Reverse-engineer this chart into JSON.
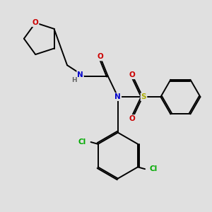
{
  "background_color": "#e0e0e0",
  "fig_size": [
    3.0,
    3.0
  ],
  "dpi": 100,
  "atom_colors": {
    "O": "#cc0000",
    "N": "#0000cc",
    "S": "#aaaa00",
    "Cl": "#00aa00",
    "H": "#666666",
    "C": "#000000"
  },
  "bond_color": "#000000",
  "bond_lw": 1.4,
  "dbo": 0.035,
  "xlim": [
    0.0,
    5.2
  ],
  "ylim": [
    -0.3,
    5.0
  ]
}
